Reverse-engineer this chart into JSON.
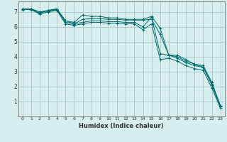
{
  "title": "",
  "xlabel": "Humidex (Indice chaleur)",
  "ylabel": "",
  "bg_color": "#d6eeee",
  "grid_color": "#aacccc",
  "line_color": "#006868",
  "xlim": [
    -0.5,
    23.5
  ],
  "ylim": [
    0,
    7.7
  ],
  "xticks": [
    0,
    1,
    2,
    3,
    4,
    5,
    6,
    7,
    8,
    9,
    10,
    11,
    12,
    13,
    14,
    15,
    16,
    17,
    18,
    19,
    20,
    21,
    22,
    23
  ],
  "yticks": [
    1,
    2,
    3,
    4,
    5,
    6,
    7
  ],
  "series": [
    {
      "x": [
        0,
        1,
        2,
        3,
        4,
        5,
        6,
        7,
        8,
        9,
        10,
        11,
        12,
        13,
        14,
        15,
        16,
        17,
        18,
        19,
        20,
        21,
        22,
        23
      ],
      "y": [
        7.2,
        7.2,
        7.0,
        7.1,
        7.2,
        6.4,
        6.3,
        6.8,
        6.7,
        6.7,
        6.6,
        6.6,
        6.5,
        6.5,
        6.5,
        6.7,
        5.9,
        4.1,
        4.1,
        3.8,
        3.5,
        3.4,
        2.3,
        0.7
      ]
    },
    {
      "x": [
        0,
        1,
        2,
        3,
        4,
        5,
        6,
        7,
        8,
        9,
        10,
        11,
        12,
        13,
        14,
        15,
        16,
        17,
        18,
        19,
        20,
        21,
        22,
        23
      ],
      "y": [
        7.2,
        7.2,
        6.9,
        7.1,
        7.2,
        6.4,
        6.2,
        6.5,
        6.55,
        6.55,
        6.5,
        6.5,
        6.45,
        6.45,
        6.45,
        6.5,
        5.5,
        4.1,
        4.0,
        3.7,
        3.5,
        3.3,
        2.2,
        0.7
      ]
    },
    {
      "x": [
        0,
        1,
        2,
        3,
        4,
        5,
        6,
        7,
        8,
        9,
        10,
        11,
        12,
        13,
        14,
        15,
        16,
        17,
        18,
        19,
        20,
        21,
        22,
        23
      ],
      "y": [
        7.2,
        7.2,
        7.0,
        7.05,
        7.15,
        6.3,
        6.2,
        6.3,
        6.4,
        6.4,
        6.35,
        6.35,
        6.3,
        6.3,
        6.0,
        6.65,
        4.2,
        4.1,
        3.9,
        3.6,
        3.4,
        3.3,
        2.1,
        0.65
      ]
    },
    {
      "x": [
        0,
        1,
        2,
        3,
        4,
        5,
        6,
        7,
        8,
        9,
        10,
        11,
        12,
        13,
        14,
        15,
        16,
        17,
        18,
        19,
        20,
        21,
        22,
        23
      ],
      "y": [
        7.15,
        7.15,
        6.85,
        7.0,
        7.1,
        6.2,
        6.1,
        6.2,
        6.3,
        6.3,
        6.25,
        6.25,
        6.2,
        6.2,
        5.8,
        6.2,
        3.8,
        3.9,
        3.7,
        3.4,
        3.2,
        3.1,
        1.9,
        0.55
      ]
    }
  ]
}
